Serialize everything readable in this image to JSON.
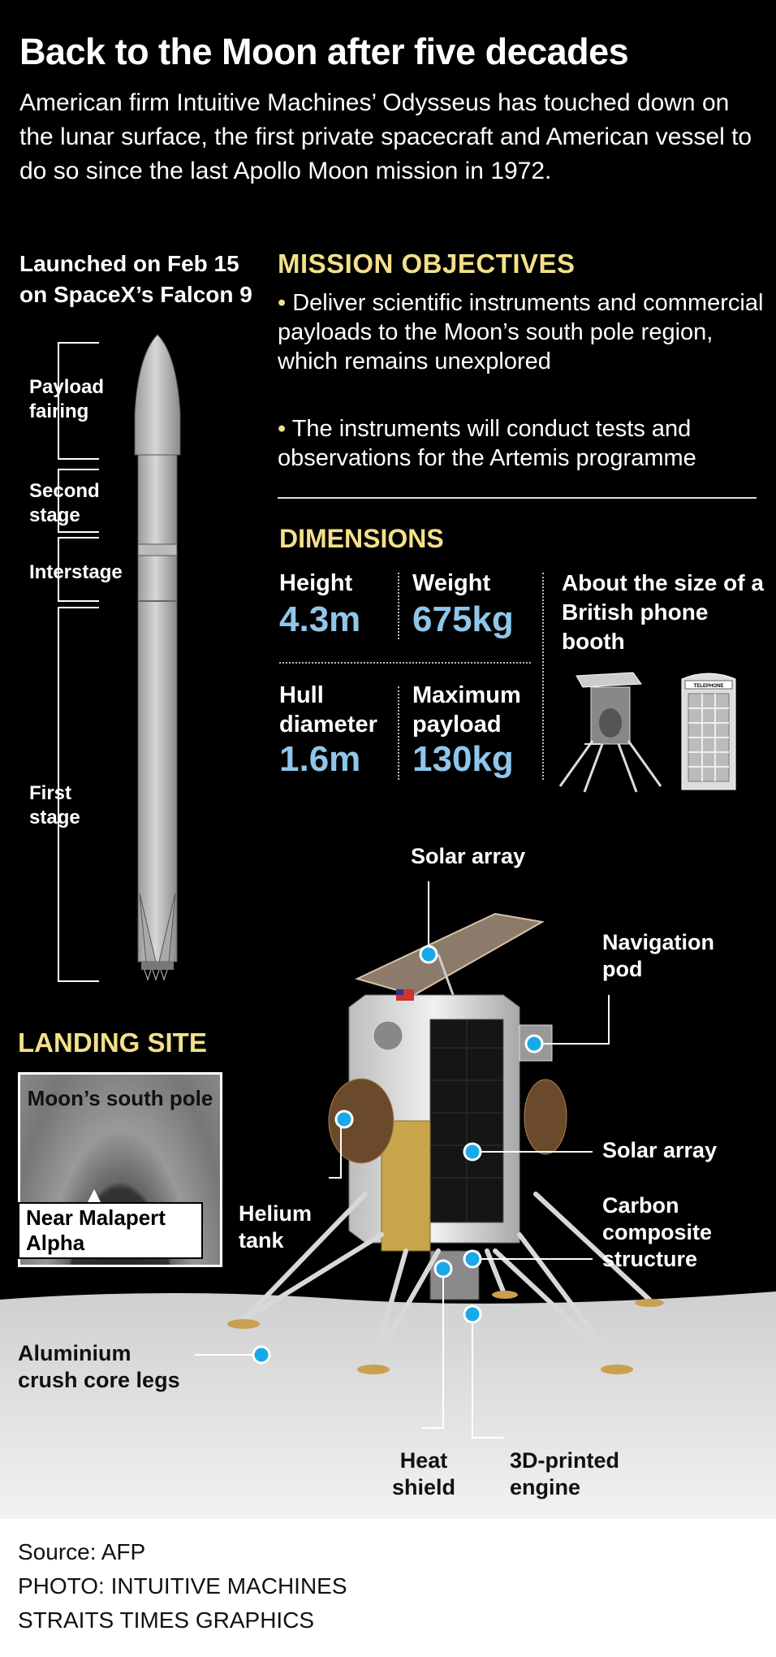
{
  "header": {
    "title": "Back to the Moon after five decades",
    "intro": "American firm Intuitive Machines’ Odysseus has touched down on the lunar surface, the first private spacecraft and American vessel to do so since the last Apollo Moon mission in 1972."
  },
  "launch": {
    "caption": "Launched on Feb 15 on SpaceX’s Falcon 9",
    "labels": {
      "payload_fairing": "Payload fairing",
      "second_stage": "Second stage",
      "interstage": "Interstage",
      "first_stage": "First stage"
    }
  },
  "mission": {
    "title": "MISSION OBJECTIVES",
    "objectives": [
      "Deliver scientific instruments and commercial payloads to the Moon’s south pole region, which remains unexplored",
      "The instruments will conduct tests and observations for the Artemis programme"
    ]
  },
  "dimensions": {
    "title": "DIMENSIONS",
    "height_label": "Height",
    "height_value": "4.3m",
    "weight_label": "Weight",
    "weight_value": "675kg",
    "hull_label": "Hull diameter",
    "hull_value": "1.6m",
    "payload_label": "Maximum payload",
    "payload_value": "130kg",
    "size_comparison": "About the size of a British phone booth",
    "booth_sign": "TELEPHONE"
  },
  "landing_site": {
    "title": "LANDING SITE",
    "region": "Moon’s south pole",
    "site": "Near Malapert Alpha"
  },
  "callouts": {
    "solar_array_top": "Solar array",
    "navigation_pod": "Navigation pod",
    "solar_array_side": "Solar array",
    "carbon_structure": "Carbon composite structure",
    "helium_tank": "Helium tank",
    "crush_core_legs": "Aluminium crush core legs",
    "heat_shield": "Heat shield",
    "engine": "3D-printed engine"
  },
  "footer": {
    "source": "Source: AFP",
    "photo": "PHOTO: INTUITIVE MACHINES",
    "credit": "STRAITS TIMES GRAPHICS"
  },
  "colors": {
    "background": "#000000",
    "heading_yellow": "#f3e08a",
    "value_blue": "#8fc6ea",
    "callout_dot": "#1aa9e8"
  }
}
